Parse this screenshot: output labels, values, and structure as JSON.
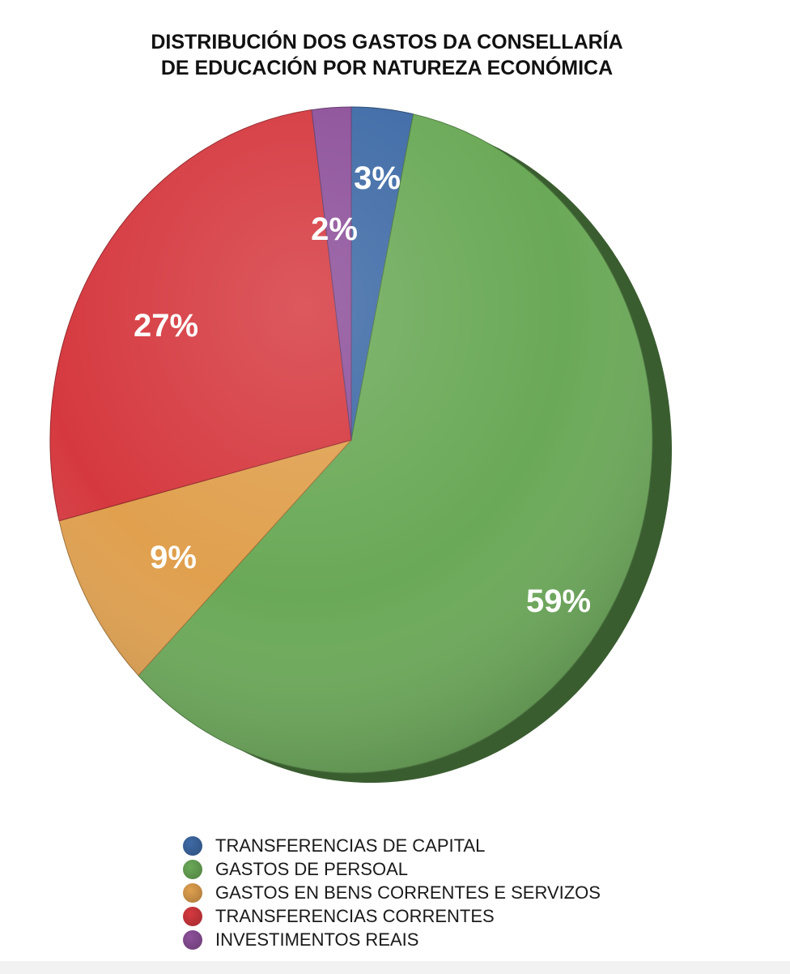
{
  "chart_data": {
    "type": "pie",
    "title_lines": [
      "DISTRIBUCIÓN DOS GASTOS DA CONSELLARÍA",
      "DE EDUCACIÓN POR NATUREZA ECONÓMICA"
    ],
    "slices": [
      {
        "name": "TRANSFERENCIAS DE CAPITAL",
        "value": 3.3,
        "label": "3%",
        "color": "#3e6aa6"
      },
      {
        "name": "GASTOS DE PERSOAL",
        "value": 59.2,
        "label": "59%",
        "color": "#6aa957"
      },
      {
        "name": "GASTOS EN BENS CORRENTES E SERVIZOS",
        "value": 8.6,
        "label": "9%",
        "color": "#e0a04e"
      },
      {
        "name": "TRANSFERENCIAS CORRENTES",
        "value": 26.8,
        "label": "27%",
        "color": "#d5393f"
      },
      {
        "name": "INVESTIMENTOS REAIS",
        "value": 2.1,
        "label": "2%",
        "color": "#8d509a"
      }
    ],
    "legend_position": "bottom",
    "start_angle": "top, clockwise",
    "style": "3d"
  }
}
